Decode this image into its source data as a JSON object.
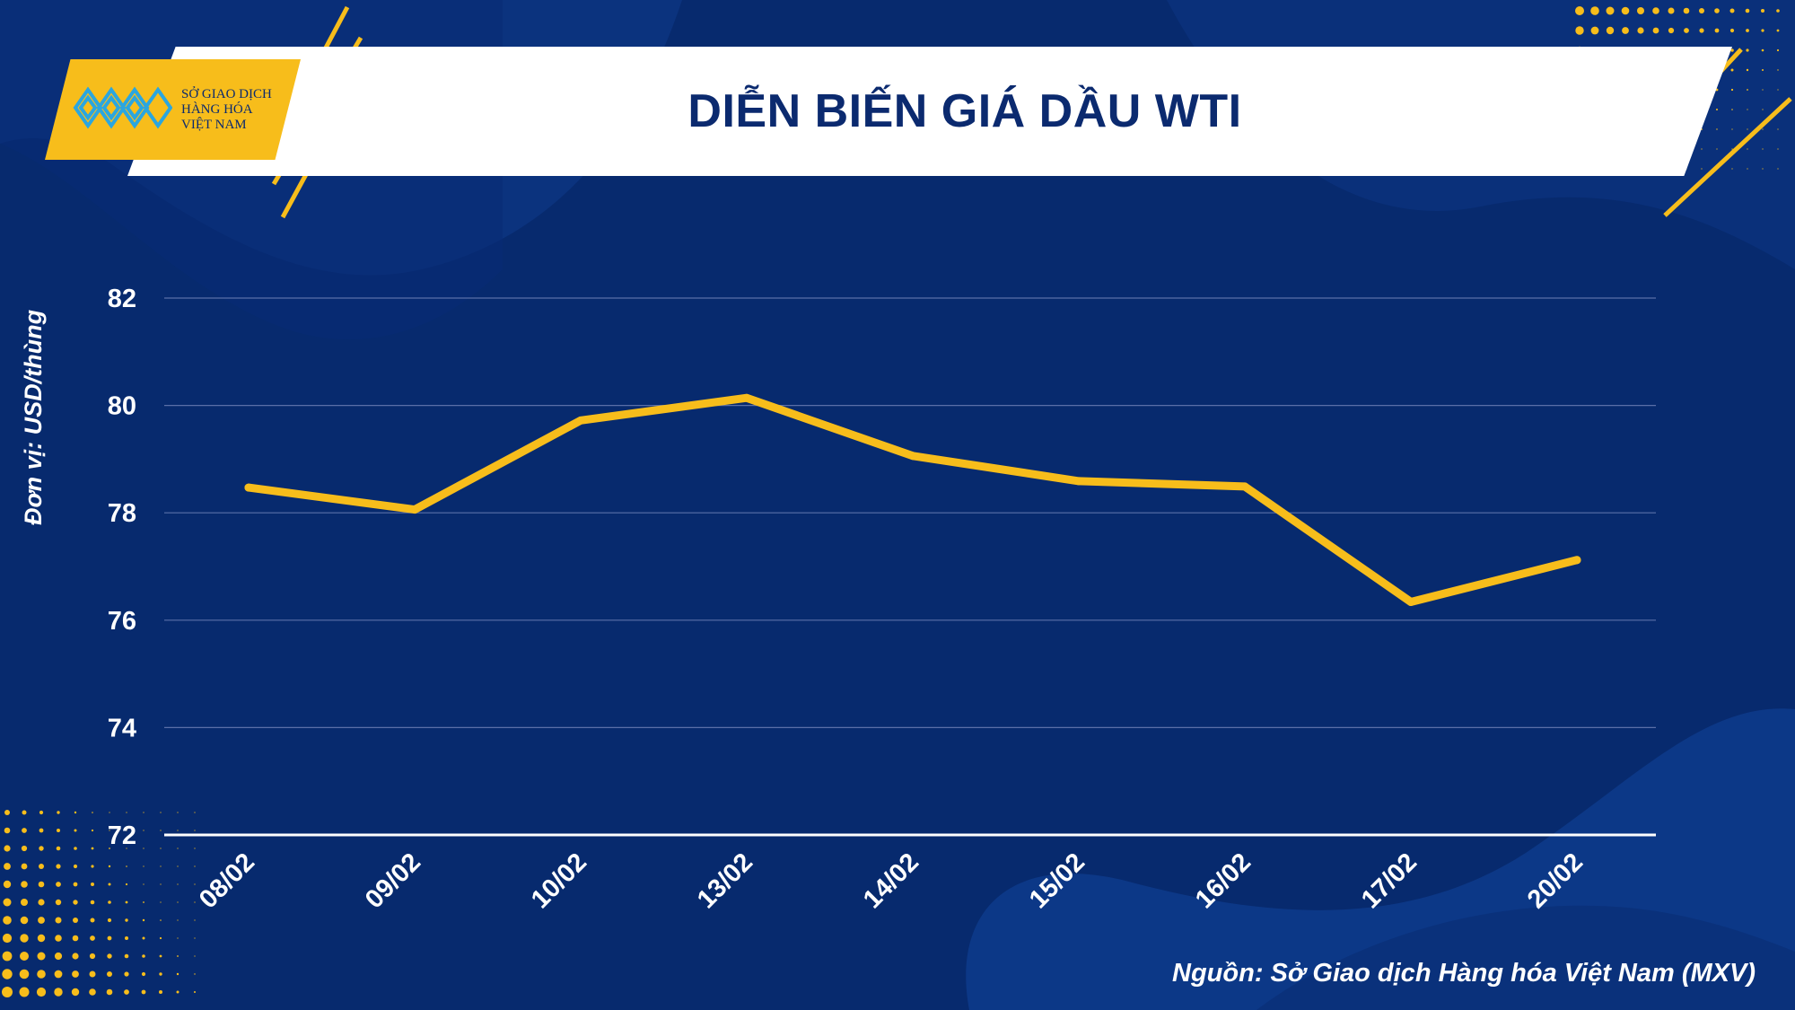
{
  "header": {
    "title": "DIỄN BIẾN GIÁ DẦU WTI",
    "logo_lines": [
      "SỞ GIAO DỊCH",
      "HÀNG HÓA",
      "VIỆT NAM"
    ]
  },
  "colors": {
    "background": "#072a6e",
    "accent": "#f7bd1b",
    "line": "#f7bd1b",
    "header_band": "#ffffff",
    "title_text": "#0b2a6f"
  },
  "footer": {
    "source": "Nguồn: Sở Giao dịch Hàng hóa Việt Nam (MXV)"
  },
  "chart_data": {
    "type": "line",
    "title": "DIỄN BIẾN GIÁ DẦU WTI",
    "ylabel": "Đơn vị: USD/thùng",
    "xlabel": "",
    "categories": [
      "08/02",
      "09/02",
      "10/02",
      "13/02",
      "14/02",
      "15/02",
      "16/02",
      "17/02",
      "20/02"
    ],
    "series": [
      {
        "values": [
          78.47,
          78.06,
          79.72,
          80.14,
          79.06,
          78.59,
          78.49,
          76.34,
          77.12
        ]
      }
    ],
    "ylim": [
      72,
      82
    ],
    "yticks": [
      72,
      74,
      76,
      78,
      80,
      82
    ],
    "grid": true,
    "legend": "none"
  }
}
